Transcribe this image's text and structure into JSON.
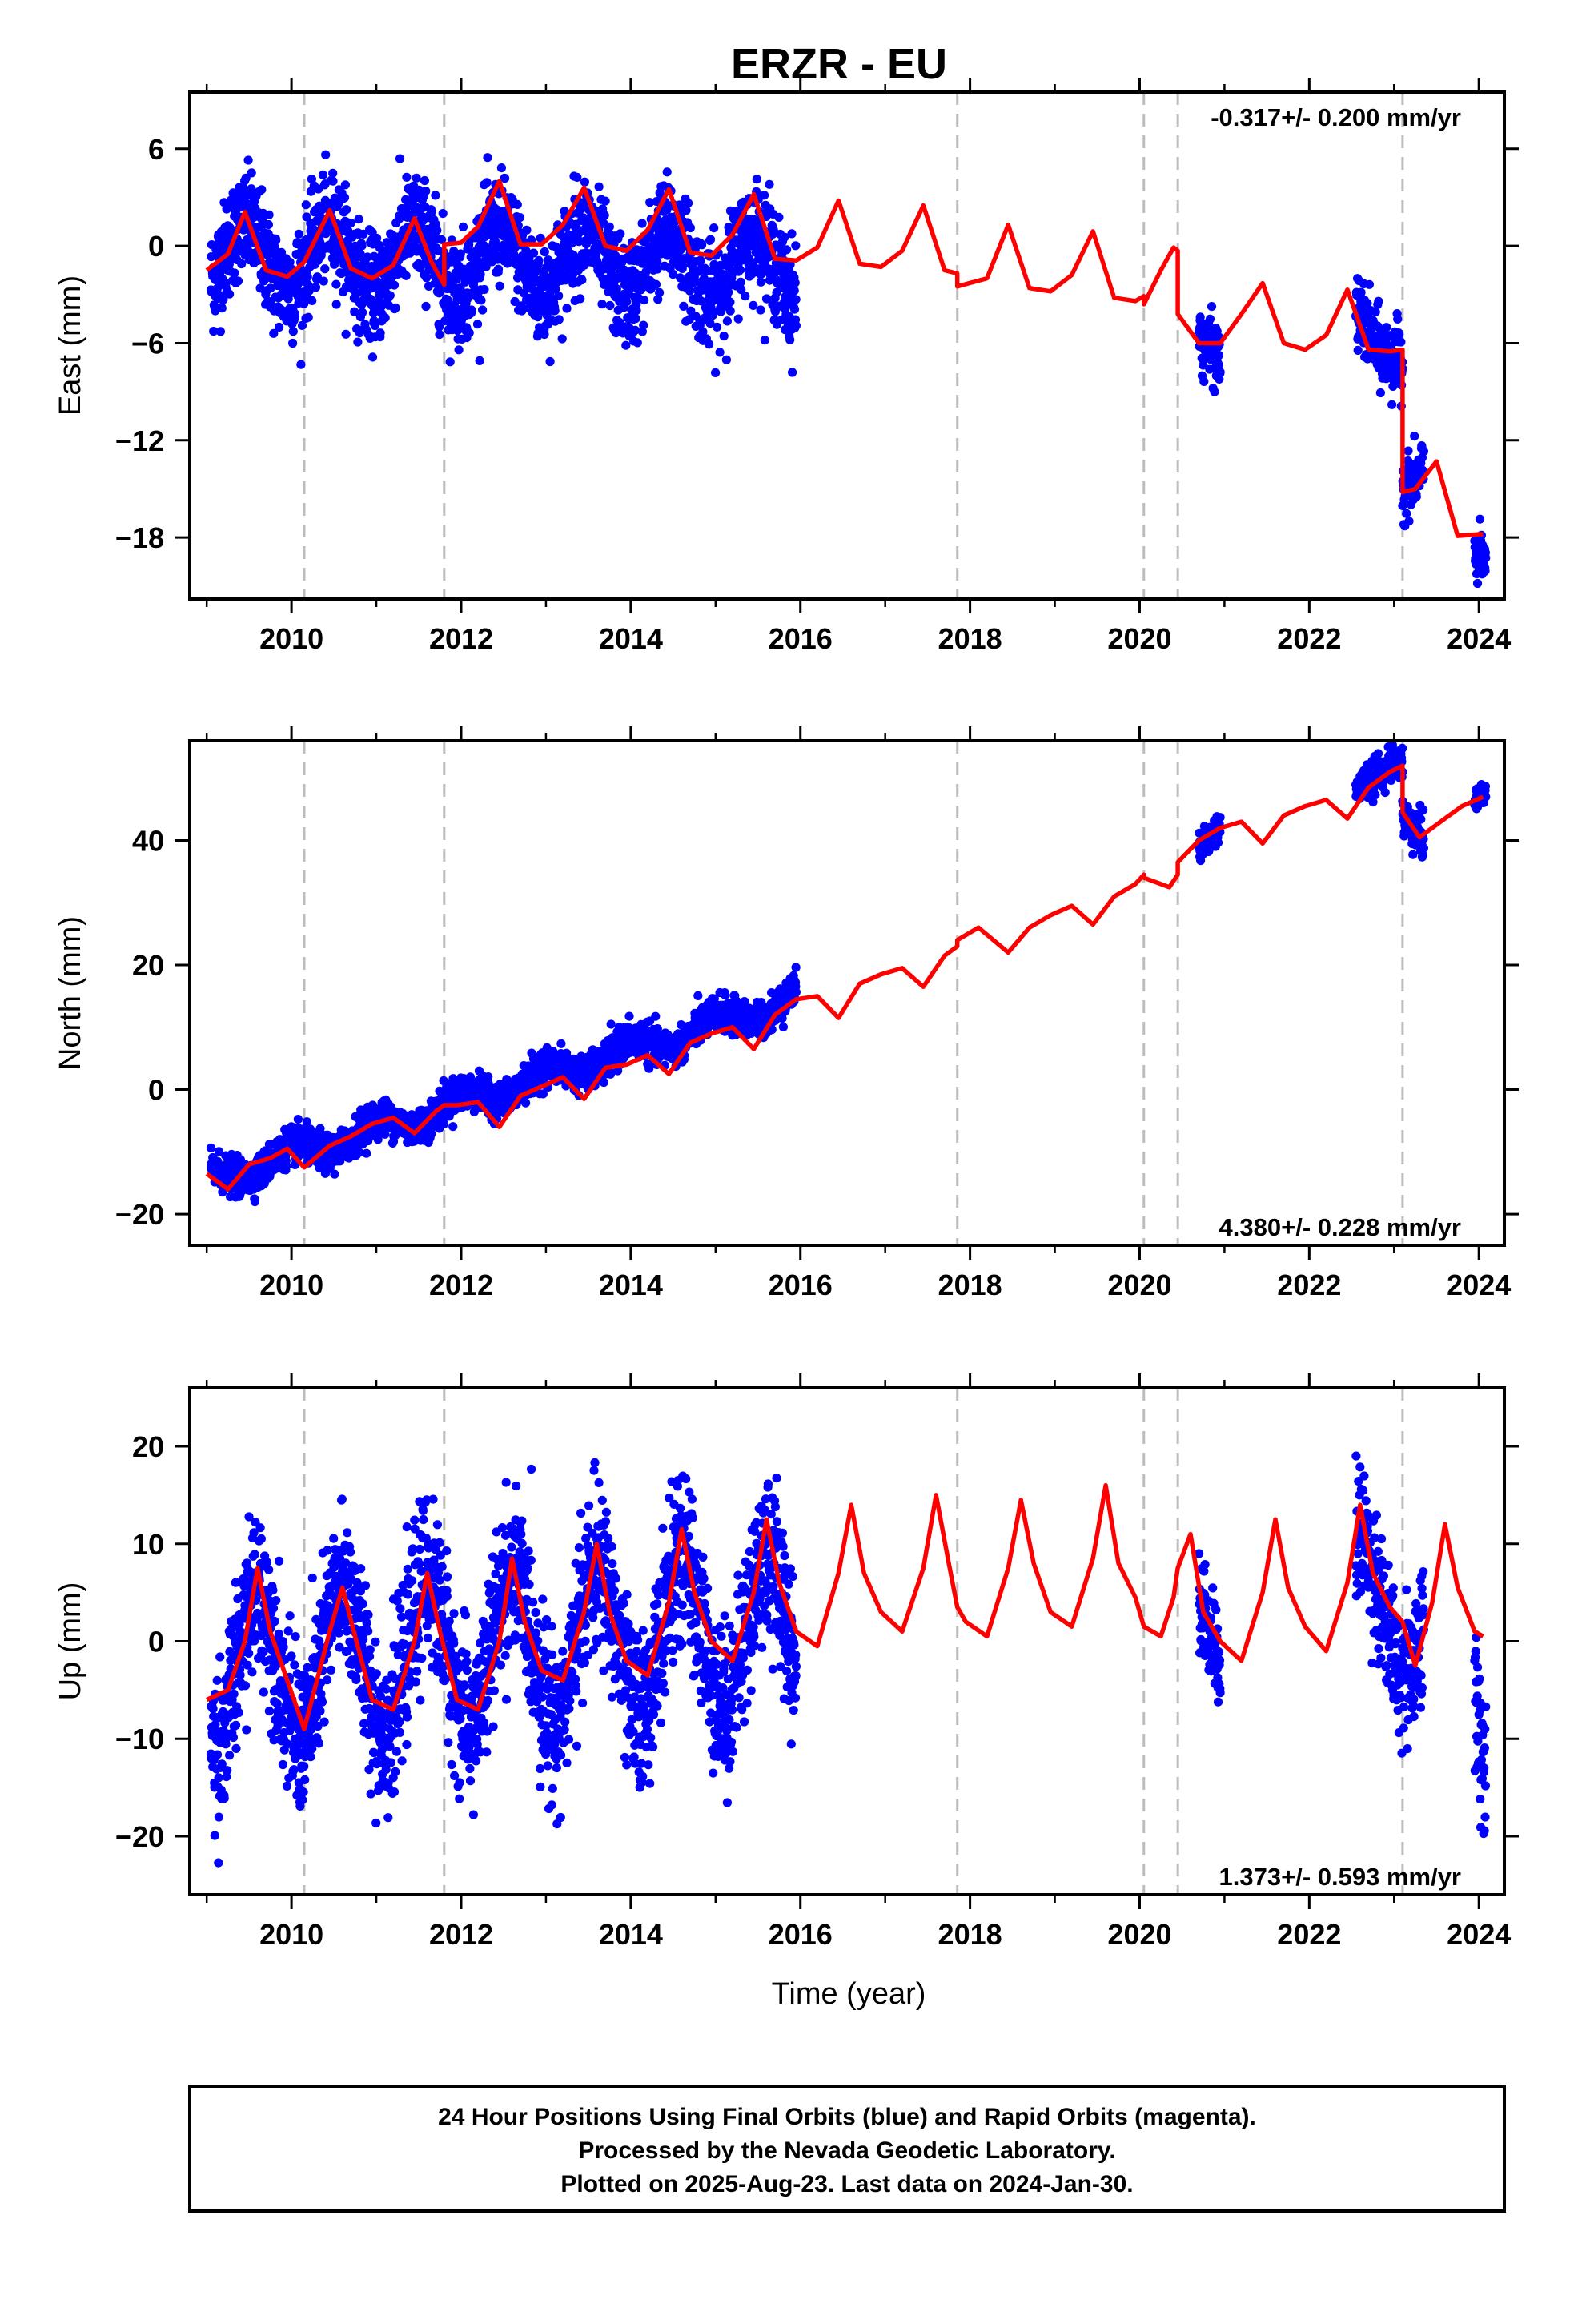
{
  "title": "ERZR - EU",
  "footer": {
    "line1": "24 Hour Positions Using Final Orbits (blue) and Rapid Orbits (magenta).",
    "line2": "Processed by the Nevada Geodetic Laboratory.",
    "line3": "Plotted on 2025-Aug-23. Last data on 2024-Jan-30."
  },
  "colors": {
    "data": "#0000ff",
    "model": "#ff0000",
    "breaks": "#bdbdbd",
    "frame": "#000000"
  },
  "chart_data": [
    {
      "type": "scatter",
      "ylabel": "East (mm)",
      "xlabel": "",
      "rate_text": "-0.317+/- 0.200 mm/yr",
      "rate_position": "top-right",
      "xlim": [
        2008.8,
        2024.3
      ],
      "ylim": [
        -21.8,
        9.5
      ],
      "x_ticks": [
        2010,
        2012,
        2014,
        2016,
        2018,
        2020,
        2022,
        2024
      ],
      "y_ticks": [
        6,
        0,
        -6,
        -12,
        -18
      ],
      "y_tick_labels": [
        "6",
        "0",
        "−6",
        "−12",
        "−18"
      ],
      "breaks": [
        2010.15,
        2011.8,
        2017.85,
        2020.05,
        2020.45,
        2023.1
      ],
      "model": {
        "name": "model",
        "x": [
          2009.0,
          2009.25,
          2009.45,
          2009.7,
          2009.95,
          2010.15,
          2010.45,
          2010.7,
          2010.95,
          2011.2,
          2011.45,
          2011.65,
          2011.8,
          2011.8,
          2012.0,
          2012.2,
          2012.45,
          2012.7,
          2012.95,
          2013.2,
          2013.45,
          2013.7,
          2013.95,
          2014.2,
          2014.45,
          2014.7,
          2014.95,
          2015.2,
          2015.45,
          2015.7,
          2015.95,
          2016.2,
          2016.45,
          2016.7,
          2016.95,
          2017.2,
          2017.45,
          2017.7,
          2017.85,
          2017.85,
          2018.2,
          2018.45,
          2018.7,
          2018.95,
          2019.2,
          2019.45,
          2019.7,
          2019.95,
          2020.05,
          2020.05,
          2020.25,
          2020.4,
          2020.45,
          2020.45,
          2020.7,
          2020.95,
          2021.2,
          2021.45,
          2021.7,
          2021.95,
          2022.2,
          2022.45,
          2022.7,
          2022.95,
          2023.1,
          2023.1,
          2023.25,
          2023.5,
          2023.75,
          2024.0,
          2024.05
        ],
        "y": [
          -1.5,
          -0.5,
          2.1,
          -1.5,
          -1.9,
          -1.0,
          2.2,
          -1.4,
          -2.0,
          -1.2,
          1.7,
          -1.0,
          -2.4,
          0.1,
          0.2,
          1.2,
          4.0,
          0.1,
          0.1,
          1.3,
          3.6,
          0.0,
          -0.3,
          1.0,
          3.5,
          -0.4,
          -0.6,
          0.7,
          3.2,
          -0.8,
          -0.9,
          -0.1,
          2.8,
          -1.1,
          -1.3,
          -0.3,
          2.5,
          -1.5,
          -1.7,
          -2.5,
          -2.0,
          1.3,
          -2.6,
          -2.8,
          -1.8,
          0.9,
          -3.2,
          -3.4,
          -3.1,
          -3.6,
          -1.5,
          -0.1,
          -0.3,
          -4.2,
          -6.0,
          -6.0,
          -4.2,
          -2.3,
          -6.0,
          -6.4,
          -5.5,
          -2.7,
          -6.4,
          -6.5,
          -6.4,
          -15.2,
          -15.0,
          -13.3,
          -17.9,
          -17.8,
          -17.8
        ]
      },
      "observations": {
        "name": "daily positions",
        "segments": [
          {
            "x": [
              2009.05,
              2015.95
            ],
            "trend": [
              -0.6,
              -1.2
            ],
            "seasonal_amp": 2.0,
            "seasonal_phase": 2009.45,
            "scatter": 1.6
          },
          {
            "x": [
              2020.7,
              2020.95
            ],
            "trend": [
              -5.6,
              -6.0
            ],
            "seasonal_amp": 0.8,
            "seasonal_phase": 2021.45,
            "scatter": 1.0
          },
          {
            "x": [
              2022.55,
              2023.1
            ],
            "trend": [
              -4.8,
              -6.6
            ],
            "seasonal_amp": 0.9,
            "seasonal_phase": 2022.45,
            "scatter": 1.1
          },
          {
            "x": [
              2023.1,
              2023.35
            ],
            "trend": [
              -14.8,
              -14.2
            ],
            "seasonal_amp": 0.4,
            "seasonal_phase": 2023.45,
            "scatter": 0.9
          },
          {
            "x": [
              2023.95,
              2024.08
            ],
            "trend": [
              -19.0,
              -19.5
            ],
            "seasonal_amp": 0.0,
            "seasonal_phase": 2024.45,
            "scatter": 0.8
          }
        ]
      }
    },
    {
      "type": "scatter",
      "ylabel": "North (mm)",
      "xlabel": "",
      "rate_text": "4.380+/- 0.228 mm/yr",
      "rate_position": "bottom-right",
      "xlim": [
        2008.8,
        2024.3
      ],
      "ylim": [
        -25,
        56
      ],
      "x_ticks": [
        2010,
        2012,
        2014,
        2016,
        2018,
        2020,
        2022,
        2024
      ],
      "y_ticks": [
        40,
        20,
        0,
        -20
      ],
      "y_tick_labels": [
        "40",
        "20",
        "0",
        "−20"
      ],
      "breaks": [
        2010.15,
        2011.8,
        2017.85,
        2020.05,
        2020.45,
        2023.1
      ],
      "model": {
        "name": "model",
        "x": [
          2009.0,
          2009.25,
          2009.5,
          2009.75,
          2009.95,
          2010.15,
          2010.45,
          2010.7,
          2010.95,
          2011.2,
          2011.45,
          2011.7,
          2011.8,
          2011.95,
          2012.2,
          2012.45,
          2012.7,
          2012.95,
          2013.2,
          2013.45,
          2013.7,
          2013.95,
          2014.2,
          2014.45,
          2014.7,
          2014.95,
          2015.2,
          2015.45,
          2015.7,
          2015.95,
          2016.2,
          2016.45,
          2016.7,
          2016.95,
          2017.2,
          2017.45,
          2017.7,
          2017.85,
          2017.85,
          2018.1,
          2018.45,
          2018.7,
          2018.95,
          2019.2,
          2019.45,
          2019.7,
          2019.95,
          2020.05,
          2020.05,
          2020.35,
          2020.45,
          2020.45,
          2020.7,
          2020.95,
          2021.2,
          2021.45,
          2021.7,
          2021.95,
          2022.2,
          2022.45,
          2022.7,
          2022.95,
          2023.1,
          2023.1,
          2023.3,
          2023.55,
          2023.8,
          2024.05
        ],
        "y": [
          -13.5,
          -16.0,
          -12.0,
          -11.0,
          -9.5,
          -12.5,
          -9.0,
          -7.5,
          -5.5,
          -4.5,
          -7.0,
          -3.5,
          -2.5,
          -2.5,
          -2.0,
          -6.0,
          -1.0,
          0.5,
          2.0,
          -1.5,
          3.5,
          4.0,
          5.5,
          2.5,
          7.5,
          9.0,
          10.0,
          6.5,
          12.0,
          14.5,
          15.0,
          11.5,
          17.0,
          18.5,
          19.5,
          16.5,
          21.5,
          23.0,
          24.0,
          26.0,
          22.0,
          26.0,
          28.0,
          29.5,
          26.5,
          31.0,
          33.0,
          34.5,
          34.0,
          32.5,
          34.5,
          36.5,
          40.0,
          42.0,
          43.0,
          39.5,
          44.0,
          45.5,
          46.5,
          43.5,
          48.5,
          51.0,
          52.0,
          44.5,
          40.5,
          43.0,
          45.5,
          47.0
        ]
      },
      "observations": {
        "name": "daily positions",
        "segments": [
          {
            "x": [
              2009.05,
              2015.95
            ],
            "trend": [
              -14.5,
              14.5
            ],
            "seasonal_amp": 1.6,
            "seasonal_phase": 2010.0,
            "scatter": 1.4
          },
          {
            "x": [
              2020.7,
              2020.95
            ],
            "trend": [
              39.0,
              41.5
            ],
            "seasonal_amp": 0.6,
            "seasonal_phase": 2021.0,
            "scatter": 1.2
          },
          {
            "x": [
              2022.55,
              2023.1
            ],
            "trend": [
              49.0,
              52.0
            ],
            "seasonal_amp": 0.8,
            "seasonal_phase": 2023.0,
            "scatter": 1.3
          },
          {
            "x": [
              2023.1,
              2023.35
            ],
            "trend": [
              43.5,
              40.5
            ],
            "seasonal_amp": 0.0,
            "seasonal_phase": 2023.0,
            "scatter": 1.8
          },
          {
            "x": [
              2023.95,
              2024.08
            ],
            "trend": [
              46.5,
              47.5
            ],
            "seasonal_amp": 0.0,
            "seasonal_phase": 2024.0,
            "scatter": 0.9
          }
        ]
      }
    },
    {
      "type": "scatter",
      "ylabel": "Up (mm)",
      "xlabel": "Time (year)",
      "rate_text": "1.373+/- 0.593 mm/yr",
      "rate_position": "bottom-right",
      "xlim": [
        2008.8,
        2024.3
      ],
      "ylim": [
        -26,
        26
      ],
      "x_ticks": [
        2010,
        2012,
        2014,
        2016,
        2018,
        2020,
        2022,
        2024
      ],
      "y_ticks": [
        20,
        10,
        0,
        -10,
        -20
      ],
      "y_tick_labels": [
        "20",
        "10",
        "0",
        "−10",
        "−20"
      ],
      "breaks": [
        2010.15,
        2011.8,
        2017.85,
        2020.05,
        2020.45,
        2023.1
      ],
      "model": {
        "name": "model",
        "x": [
          2009.0,
          2009.25,
          2009.45,
          2009.6,
          2009.75,
          2009.95,
          2010.15,
          2010.3,
          2010.45,
          2010.6,
          2010.75,
          2010.95,
          2011.2,
          2011.45,
          2011.6,
          2011.75,
          2011.95,
          2012.2,
          2012.45,
          2012.6,
          2012.75,
          2012.95,
          2013.2,
          2013.45,
          2013.6,
          2013.75,
          2013.95,
          2014.2,
          2014.45,
          2014.6,
          2014.75,
          2014.95,
          2015.2,
          2015.45,
          2015.6,
          2015.75,
          2015.95,
          2016.2,
          2016.45,
          2016.6,
          2016.75,
          2016.95,
          2017.2,
          2017.45,
          2017.6,
          2017.75,
          2017.85,
          2017.95,
          2018.2,
          2018.45,
          2018.6,
          2018.75,
          2018.95,
          2019.2,
          2019.45,
          2019.6,
          2019.75,
          2019.95,
          2020.05,
          2020.25,
          2020.4,
          2020.45,
          2020.6,
          2020.75,
          2020.95,
          2021.2,
          2021.45,
          2021.6,
          2021.75,
          2021.95,
          2022.2,
          2022.45,
          2022.6,
          2022.75,
          2022.95,
          2023.1,
          2023.25,
          2023.45,
          2023.6,
          2023.75,
          2023.95,
          2024.05
        ],
        "y": [
          -6.0,
          -5.0,
          0.0,
          7.5,
          1.0,
          -4.0,
          -9.0,
          -4.0,
          1.0,
          5.5,
          0.5,
          -6.0,
          -7.0,
          0.0,
          7.0,
          1.0,
          -6.0,
          -7.0,
          0.0,
          8.5,
          2.0,
          -3.0,
          -4.0,
          3.0,
          10.0,
          3.0,
          -2.0,
          -3.5,
          4.0,
          11.5,
          5.0,
          0.0,
          -2.0,
          5.0,
          12.5,
          6.0,
          1.0,
          -0.5,
          7.0,
          14.0,
          7.0,
          3.0,
          1.0,
          7.5,
          15.0,
          8.0,
          3.5,
          2.0,
          0.5,
          7.5,
          14.5,
          8.0,
          3.0,
          1.5,
          8.5,
          16.0,
          8.0,
          4.5,
          1.5,
          0.5,
          4.5,
          7.5,
          11.0,
          3.0,
          0.0,
          -2.0,
          5.0,
          12.5,
          5.5,
          1.5,
          -1.0,
          6.0,
          14.0,
          7.0,
          3.5,
          2.0,
          -2.5,
          4.0,
          12.0,
          5.5,
          1.0,
          0.5
        ]
      },
      "observations": {
        "name": "daily positions",
        "segments": [
          {
            "x": [
              2009.05,
              2015.95
            ],
            "trend": [
              -3.0,
              1.5
            ],
            "seasonal_amp": 7.5,
            "seasonal_phase": 2009.6,
            "scatter": 4.0
          },
          {
            "x": [
              2020.7,
              2020.95
            ],
            "trend": [
              2.0,
              -1.0
            ],
            "seasonal_amp": 3.0,
            "seasonal_phase": 2020.6,
            "scatter": 2.5
          },
          {
            "x": [
              2022.55,
              2023.35
            ],
            "trend": [
              5.0,
              2.0
            ],
            "seasonal_amp": 6.0,
            "seasonal_phase": 2022.6,
            "scatter": 3.5
          },
          {
            "x": [
              2023.95,
              2024.08
            ],
            "trend": [
              -6.0,
              -14.0
            ],
            "seasonal_amp": 0.0,
            "seasonal_phase": 2024.6,
            "scatter": 4.0
          }
        ]
      }
    }
  ]
}
